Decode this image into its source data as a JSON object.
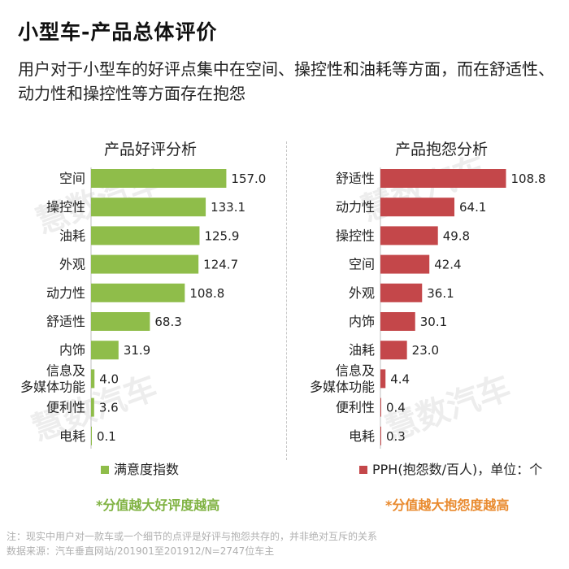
{
  "header": {
    "title": "小型车-产品总体评价",
    "subtitle": "用户对于小型车的好评点集中在空间、操控性和油耗等方面，而在舒适性、动力性和操控性等方面存在抱怨"
  },
  "watermark": "慧数汽车",
  "colors": {
    "positive": "#8fbd4a",
    "negative": "#c4474a",
    "note_positive": "#7fb241",
    "note_negative": "#e98a2e"
  },
  "chart_data": [
    {
      "type": "bar",
      "orientation": "horizontal",
      "title": "产品好评分析",
      "categories": [
        "空间",
        "操控性",
        "油耗",
        "外观",
        "动力性",
        "舒适性",
        "内饰",
        "信息及多媒体功能",
        "便利性",
        "电耗"
      ],
      "category_lines": [
        [
          "空间"
        ],
        [
          "操控性"
        ],
        [
          "油耗"
        ],
        [
          "外观"
        ],
        [
          "动力性"
        ],
        [
          "舒适性"
        ],
        [
          "内饰"
        ],
        [
          "信息及",
          "多媒体功能"
        ],
        [
          "便利性"
        ],
        [
          "电耗"
        ]
      ],
      "series": [
        {
          "name": "满意度指数",
          "values": [
            157.0,
            133.1,
            125.9,
            124.7,
            108.8,
            68.3,
            31.9,
            4.0,
            3.6,
            0.1
          ]
        }
      ],
      "value_labels": [
        "157.0",
        "133.1",
        "125.9",
        "124.7",
        "108.8",
        "68.3",
        "31.9",
        "4.0",
        "3.6",
        "0.1"
      ],
      "legend": "bottom",
      "note": "*分值越大好评度越高"
    },
    {
      "type": "bar",
      "orientation": "horizontal",
      "title": "产品抱怨分析",
      "categories": [
        "舒适性",
        "动力性",
        "操控性",
        "空间",
        "外观",
        "内饰",
        "油耗",
        "信息及多媒体功能",
        "便利性",
        "电耗"
      ],
      "category_lines": [
        [
          "舒适性"
        ],
        [
          "动力性"
        ],
        [
          "操控性"
        ],
        [
          "空间"
        ],
        [
          "外观"
        ],
        [
          "内饰"
        ],
        [
          "油耗"
        ],
        [
          "信息及",
          "多媒体功能"
        ],
        [
          "便利性"
        ],
        [
          "电耗"
        ]
      ],
      "series": [
        {
          "name": "PPH(抱怨数/百人)，单位：个",
          "values": [
            108.8,
            64.1,
            49.8,
            42.4,
            36.1,
            30.1,
            23.0,
            4.4,
            0.4,
            0.3
          ]
        }
      ],
      "value_labels": [
        "108.8",
        "64.1",
        "49.8",
        "42.4",
        "36.1",
        "30.1",
        "23.0",
        "4.4",
        "0.4",
        "0.3"
      ],
      "legend": "bottom",
      "note": "*分值越大抱怨度越高"
    }
  ],
  "footer": {
    "line1": "注：现实中用户对一款车或一个细节的点评是好评与抱怨共存的，并非绝对互斥的关系",
    "line2": "数据来源：汽车垂直网站/201901至201912/N=2747位车主"
  }
}
